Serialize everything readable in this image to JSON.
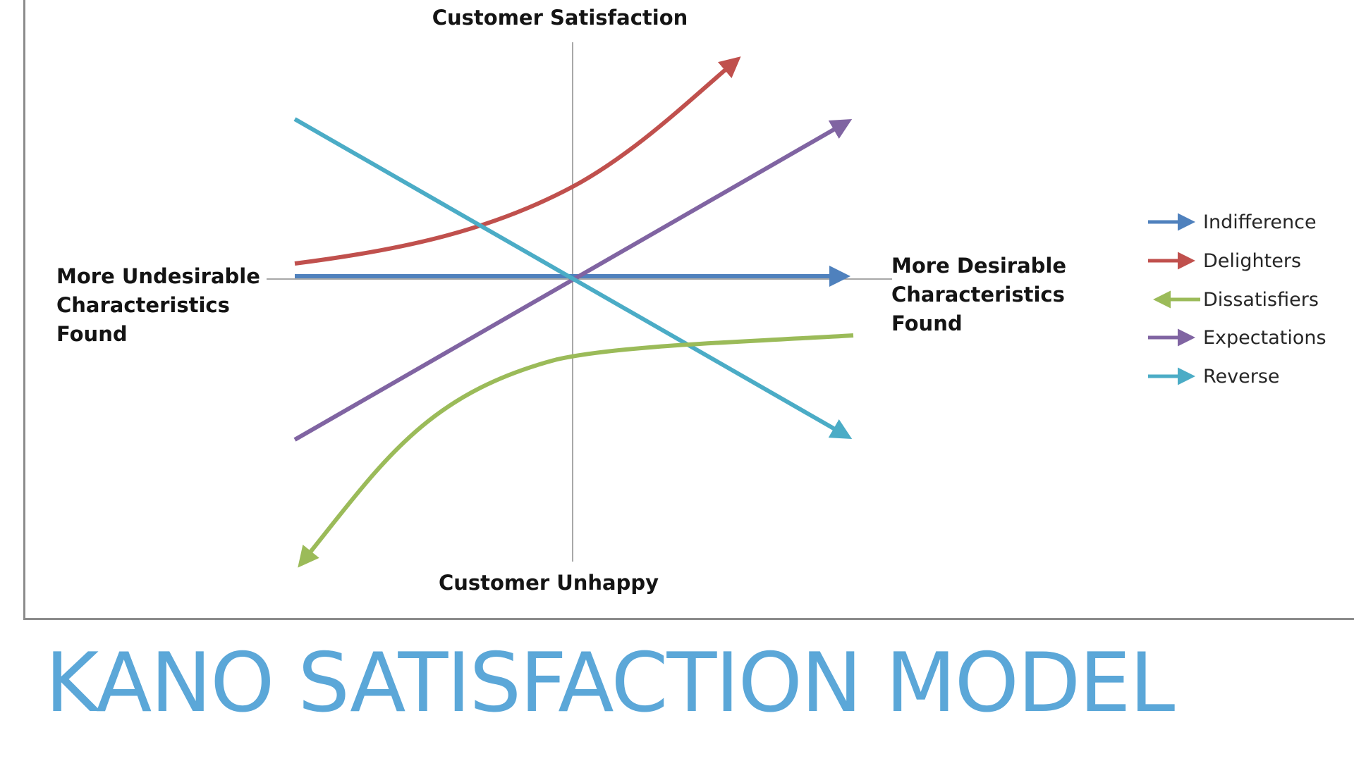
{
  "title": "KANO SATISFACTION MODEL",
  "axes": {
    "top": "Customer Satisfaction",
    "bottom": "Customer Unhappy",
    "left": [
      "More Undesirable",
      "Characteristics",
      "Found"
    ],
    "right": [
      "More Desirable",
      "Characteristics",
      "Found"
    ]
  },
  "legend": [
    {
      "label": "Indifference",
      "color": "#4f81bd",
      "direction": "right"
    },
    {
      "label": "Delighters",
      "color": "#c0504d",
      "direction": "right"
    },
    {
      "label": "Dissatisfiers",
      "color": "#9bbb59",
      "direction": "left"
    },
    {
      "label": "Expectations",
      "color": "#8064a2",
      "direction": "right"
    },
    {
      "label": "Reverse",
      "color": "#4bacc6",
      "direction": "right"
    }
  ],
  "colors": {
    "title": "#5ba7d8",
    "axis": "#8c8c8c"
  }
}
